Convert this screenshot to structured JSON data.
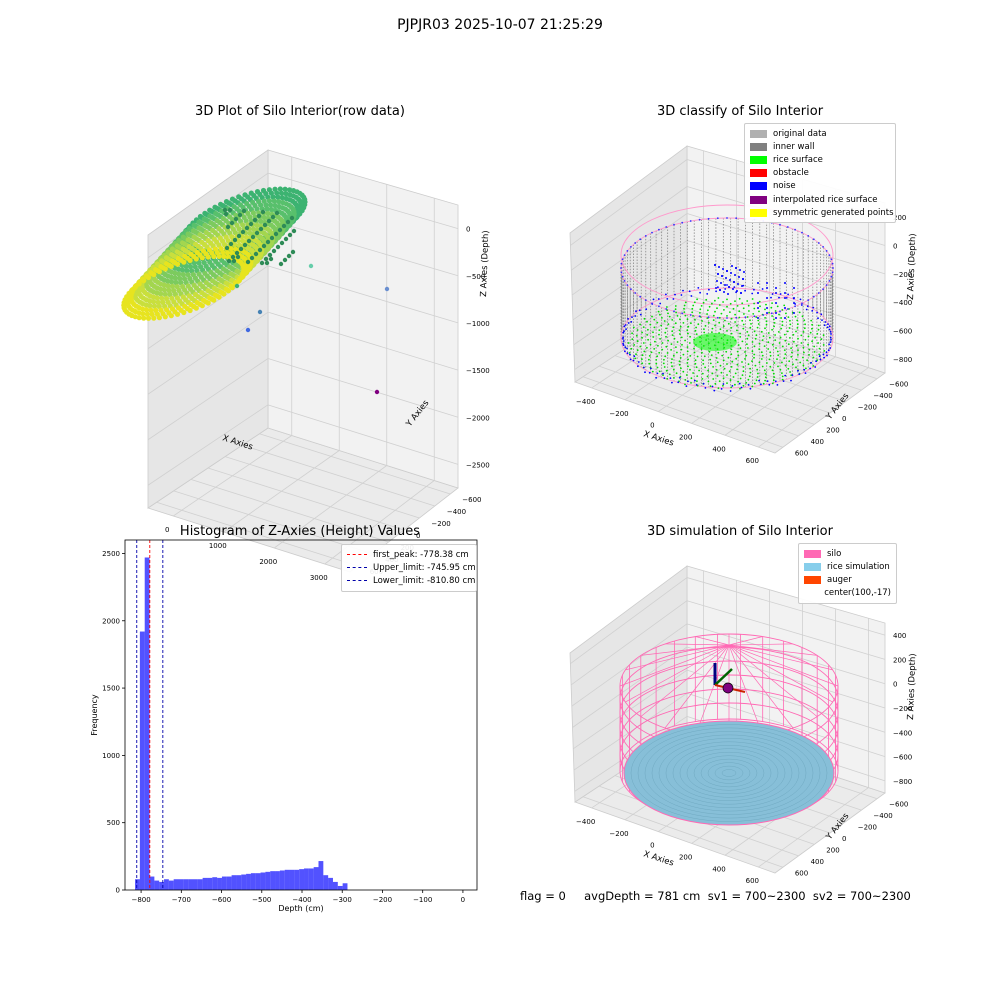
{
  "suptitle": "PJPJR03 2025-10-07 21:25:29",
  "panels": {
    "raw": {
      "title": "3D Plot of Silo Interior(row data)",
      "xlabel": "X Axies",
      "ylabel": "Y Axies",
      "zlabel": "Z Axies (Depth)",
      "xticks": [
        "0",
        "1000",
        "2000",
        "3000"
      ],
      "yticks": [
        "600",
        "400",
        "200",
        "0",
        "−200",
        "−400",
        "−600"
      ],
      "zticks": [
        "0",
        "−500",
        "−1000",
        "−1500",
        "−2000",
        "−2500"
      ]
    },
    "classify": {
      "title": "3D classify of Silo Interior",
      "xlabel": "X Axies",
      "ylabel": "Y Axies",
      "zlabel": "Z Axies (Depth)",
      "xticks": [
        "−400",
        "−200",
        "0",
        "200",
        "400",
        "600"
      ],
      "yticks": [
        "600",
        "400",
        "200",
        "0",
        "−200",
        "−400",
        "−600"
      ],
      "zticks": [
        "200",
        "0",
        "−200",
        "−400",
        "−600",
        "−800"
      ],
      "legend": [
        {
          "label": "original data",
          "color": "#b0b0b0"
        },
        {
          "label": "inner wall",
          "color": "#808080"
        },
        {
          "label": "rice surface",
          "color": "#00ff00"
        },
        {
          "label": "obstacle",
          "color": "#ff0000"
        },
        {
          "label": "noise",
          "color": "#0000ff"
        },
        {
          "label": "interpolated rice surface",
          "color": "#800080"
        },
        {
          "label": "symmetric generated points",
          "color": "#ffff00"
        }
      ]
    },
    "hist": {
      "title": "Histogram of Z-Axies (Height) Values",
      "legend": [
        {
          "label": "first_peak: -778.38 cm",
          "color": "#ff0000"
        },
        {
          "label": "Upper_limit: -745.95 cm",
          "color": "#0000aa"
        },
        {
          "label": "Lower_limit: -810.80 cm",
          "color": "#0000aa"
        }
      ]
    },
    "sim": {
      "title": "3D simulation of Silo Interior",
      "xlabel": "X Axies",
      "ylabel": "Y Axies",
      "zlabel": "Z Axies (Depth)",
      "xticks": [
        "−400",
        "−200",
        "0",
        "200",
        "400",
        "600"
      ],
      "yticks": [
        "600",
        "400",
        "200",
        "0",
        "−200",
        "−400",
        "−600"
      ],
      "zticks": [
        "400",
        "200",
        "0",
        "−200",
        "−400",
        "−600",
        "−800"
      ],
      "legend": [
        {
          "label": "silo",
          "color": "#ff69b4"
        },
        {
          "label": "rice simulation",
          "color": "#87ceeb"
        },
        {
          "label": "auger",
          "color": "#ff4500"
        },
        {
          "label": "center(100,-17)",
          "color": ""
        }
      ]
    }
  },
  "status": "flag = 0     avgDepth = 781 cm  sv1 = 700~2300  sv2 = 700~2300",
  "chart_data": [
    {
      "type": "scatter",
      "title": "3D Plot of Silo Interior(row data)",
      "xlabel": "X Axies",
      "ylabel": "Y Axies",
      "zlabel": "Z Axies (Depth)",
      "xlim": [
        -600,
        3800
      ],
      "ylim": [
        -650,
        650
      ],
      "zlim": [
        -2700,
        100
      ]
    },
    {
      "type": "scatter",
      "title": "3D classify of Silo Interior",
      "xlabel": "X Axies",
      "ylabel": "Y Axies",
      "zlabel": "Z Axies (Depth)",
      "series": [
        {
          "name": "original data"
        },
        {
          "name": "inner wall"
        },
        {
          "name": "rice surface"
        },
        {
          "name": "obstacle"
        },
        {
          "name": "noise"
        },
        {
          "name": "interpolated rice surface"
        },
        {
          "name": "symmetric generated points"
        }
      ],
      "legend": "top-right"
    },
    {
      "type": "bar",
      "title": "Histogram of Z-Axies (Height) Values",
      "xlabel": "Depth (cm)",
      "ylabel": "Frequency",
      "xlim": [
        -840,
        35
      ],
      "ylim": [
        0,
        2600
      ],
      "xticks": [
        -800,
        -700,
        -600,
        -500,
        -400,
        -300,
        -200,
        -100,
        0
      ],
      "yticks": [
        0,
        500,
        1000,
        1500,
        2000,
        2500
      ],
      "bin_width": 12,
      "bin_start": -815,
      "values": [
        80,
        1920,
        2470,
        100,
        70,
        60,
        80,
        70,
        80,
        80,
        80,
        80,
        80,
        80,
        90,
        90,
        95,
        90,
        100,
        100,
        110,
        110,
        115,
        120,
        125,
        125,
        130,
        135,
        140,
        140,
        145,
        150,
        150,
        150,
        155,
        160,
        160,
        170,
        215,
        110,
        90,
        60,
        30,
        50
      ],
      "vlines": [
        {
          "name": "first_peak: -778.38 cm",
          "x": -778.38,
          "color": "#ff0000"
        },
        {
          "name": "Upper_limit: -745.95 cm",
          "x": -745.95,
          "color": "#0000aa"
        },
        {
          "name": "Lower_limit: -810.80 cm",
          "x": -810.8,
          "color": "#0000aa"
        }
      ],
      "legend": "top-right"
    },
    {
      "type": "scatter",
      "title": "3D simulation of Silo Interior",
      "xlabel": "X Axies",
      "ylabel": "Y Axies",
      "zlabel": "Z Axies (Depth)",
      "series": [
        {
          "name": "silo"
        },
        {
          "name": "rice simulation"
        },
        {
          "name": "auger"
        },
        {
          "name": "center(100,-17)"
        }
      ],
      "legend": "top-right"
    }
  ]
}
